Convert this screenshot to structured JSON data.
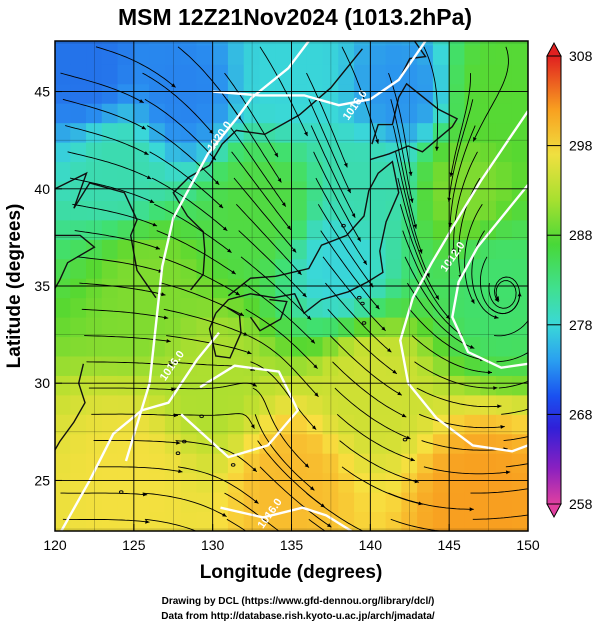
{
  "chart_data": {
    "type": "heatmap",
    "title": "MSM 12Z21Nov2024 (1013.2hPa)",
    "xlabel": "Longitude (degrees)",
    "ylabel": "Latitude  (degrees)",
    "xlim": [
      120,
      150
    ],
    "ylim": [
      22.4,
      47.6
    ],
    "x_ticks": [
      120,
      125,
      130,
      135,
      140,
      145,
      150
    ],
    "y_ticks": [
      25,
      30,
      35,
      40,
      45
    ],
    "grid": true,
    "colorbar": {
      "position": "right",
      "range": [
        258,
        308
      ],
      "ticks": [
        258,
        268,
        278,
        288,
        298,
        308
      ],
      "colors": [
        "#e040a0",
        "#6a20c0",
        "#1a40e0",
        "#2a8ff0",
        "#3ad8d8",
        "#40e070",
        "#58d830",
        "#c0e030",
        "#f8e040",
        "#f8a020",
        "#f06030",
        "#e02020"
      ]
    },
    "contours": [
      {
        "label": "1020.0",
        "level": 1020.0
      },
      {
        "label": "1016.0",
        "level": 1016.0
      },
      {
        "label": "1012.0",
        "level": 1012.0
      }
    ],
    "field_samples": [
      {
        "lon": 122,
        "lat": 46,
        "value": 270
      },
      {
        "lon": 128,
        "lat": 45,
        "value": 271
      },
      {
        "lon": 135,
        "lat": 46,
        "value": 276
      },
      {
        "lon": 142,
        "lat": 45,
        "value": 272
      },
      {
        "lon": 148,
        "lat": 45,
        "value": 285
      },
      {
        "lon": 124,
        "lat": 41,
        "value": 278
      },
      {
        "lon": 133,
        "lat": 39,
        "value": 284
      },
      {
        "lon": 140,
        "lat": 40,
        "value": 278
      },
      {
        "lon": 146,
        "lat": 40,
        "value": 287
      },
      {
        "lon": 126,
        "lat": 35,
        "value": 287
      },
      {
        "lon": 138,
        "lat": 36,
        "value": 276
      },
      {
        "lon": 148,
        "lat": 35,
        "value": 281
      },
      {
        "lon": 130,
        "lat": 30,
        "value": 289
      },
      {
        "lon": 140,
        "lat": 30,
        "value": 291
      },
      {
        "lon": 125,
        "lat": 25,
        "value": 294
      },
      {
        "lon": 135,
        "lat": 25,
        "value": 297
      },
      {
        "lon": 147,
        "lat": 24,
        "value": 299
      }
    ]
  },
  "credits": {
    "line1": "Drawing by DCL (https://www.gfd-dennou.org/library/dcl/)",
    "line2": "Data from http://database.rish.kyoto-u.ac.jp/arch/jmadata/"
  }
}
